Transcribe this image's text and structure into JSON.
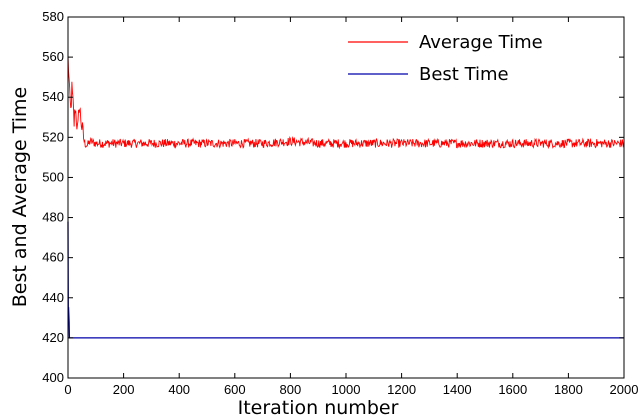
{
  "chart_data": {
    "type": "line",
    "xlabel": "Iteration number",
    "ylabel": "Best and Average Time",
    "xlim": [
      0,
      2000
    ],
    "ylim": [
      400,
      580
    ],
    "xticks": [
      0,
      200,
      400,
      600,
      800,
      1000,
      1200,
      1400,
      1600,
      1800,
      2000
    ],
    "yticks": [
      400,
      420,
      440,
      460,
      480,
      500,
      520,
      540,
      560,
      580
    ],
    "grid": false,
    "legend_position": "top-right",
    "series": [
      {
        "name": "Average Time",
        "color": "#ff0000",
        "x": [
          0,
          3,
          6,
          10,
          14,
          18,
          22,
          26,
          30,
          35,
          40,
          45,
          50,
          55,
          60,
          70,
          80,
          100,
          150,
          200,
          300,
          400,
          500,
          600,
          700,
          800,
          900,
          1000,
          1100,
          1200,
          1300,
          1400,
          1500,
          1600,
          1700,
          1800,
          1900,
          2000
        ],
        "values": [
          560,
          552,
          540,
          533,
          544,
          537,
          527,
          535,
          530,
          522,
          536,
          531,
          525,
          521,
          517,
          516,
          518,
          517,
          517,
          517,
          517,
          517,
          517,
          517,
          517,
          518,
          517,
          517,
          517,
          517,
          517,
          517,
          517,
          517,
          517,
          517,
          517,
          517
        ],
        "noise_amplitude": 2.2
      },
      {
        "name": "Best Time",
        "color": "#0000aa",
        "x": [
          0,
          1,
          2,
          4,
          5,
          10,
          20,
          2000
        ],
        "values": [
          478,
          435,
          435,
          428,
          420,
          420,
          420,
          420
        ]
      }
    ]
  }
}
